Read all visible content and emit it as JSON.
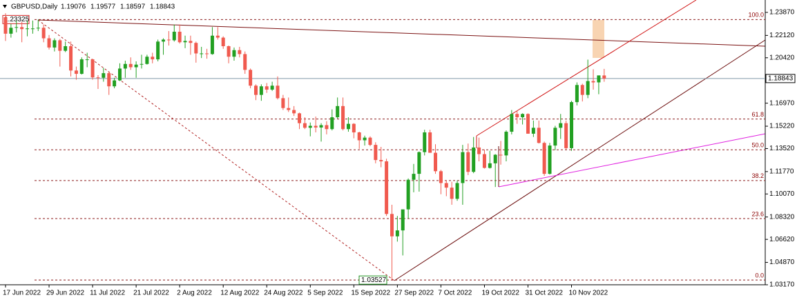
{
  "chart_data": {
    "type": "candlestick",
    "symbol": "GBPUSD,Daily",
    "categories": [
      "17 Jun 2022",
      null,
      null,
      null,
      null,
      null,
      null,
      null,
      "29 Jun 2022",
      null,
      null,
      null,
      null,
      null,
      null,
      null,
      "11 Jul 2022",
      null,
      null,
      null,
      null,
      null,
      null,
      null,
      "21 Jul 2022",
      null,
      null,
      null,
      null,
      null,
      null,
      null,
      "2 Aug 2022",
      null,
      null,
      null,
      null,
      null,
      null,
      null,
      "12 Aug 2022",
      null,
      null,
      null,
      null,
      null,
      null,
      null,
      "24 Aug 2022",
      null,
      null,
      null,
      null,
      null,
      null,
      null,
      "5 Sep 2022",
      null,
      null,
      null,
      null,
      null,
      null,
      null,
      "15 Sep 2022",
      null,
      null,
      null,
      null,
      null,
      null,
      null,
      "27 Sep 2022",
      null,
      null,
      null,
      null,
      null,
      null,
      null,
      "7 Oct 2022",
      null,
      null,
      null,
      null,
      null,
      null,
      null,
      "19 Oct 2022",
      null,
      null,
      null,
      null,
      null,
      null,
      null,
      "31 Oct 2022",
      null,
      null,
      null,
      null,
      null,
      null,
      null,
      "10 Nov 2022",
      null,
      null,
      null,
      null,
      null,
      null
    ],
    "up_color": "#22a022",
    "down_color": "#f05a4f",
    "series": [
      {
        "open": [
          1.235,
          1.2225,
          1.227,
          1.2275,
          1.226,
          1.2265,
          1.2265,
          1.227,
          1.219,
          1.212,
          1.2175,
          1.2095,
          1.213,
          1.1945,
          1.192,
          1.203,
          1.203,
          1.1893,
          1.189,
          1.1925,
          1.1825,
          1.187,
          1.196,
          1.1995,
          1.197,
          1.199,
          1.1995,
          1.205,
          1.203,
          1.2165,
          1.218,
          1.2175,
          1.224,
          1.216,
          1.217,
          1.2155,
          1.2075,
          1.2075,
          1.207,
          1.221,
          1.2195,
          1.213,
          1.205,
          1.21,
          1.207,
          1.195,
          1.183,
          1.176,
          1.1825,
          1.18,
          1.183,
          1.1735,
          1.166,
          1.1645,
          1.162,
          1.1545,
          1.151,
          1.1525,
          1.1512,
          1.153,
          1.15,
          1.159,
          1.1675,
          1.15,
          1.154,
          1.1475,
          1.1415,
          1.1435,
          1.138,
          1.1265,
          1.1255,
          1.0855,
          1.0685,
          1.073,
          1.089,
          1.1115,
          1.116,
          1.1325,
          1.1475,
          1.132,
          1.118,
          1.109,
          1.1055,
          1.097,
          1.109,
          1.1325,
          1.1175,
          1.136,
          1.131,
          1.1205,
          1.124,
          1.1305,
          1.13,
          1.148,
          1.1615,
          1.159,
          1.1615,
          1.1465,
          1.151,
          1.1395,
          1.116,
          1.1375,
          1.151,
          1.1545,
          1.1355,
          1.1705,
          1.1835,
          1.176,
          1.1865,
          1.1855,
          1.19076
        ],
        "high": [
          1.238,
          1.23,
          1.2325,
          1.2315,
          1.2325,
          1.2325,
          1.23325,
          1.2295,
          1.2215,
          1.219,
          1.2185,
          1.2165,
          1.2165,
          1.1975,
          1.2045,
          1.208,
          1.2035,
          1.191,
          1.1965,
          1.1935,
          1.189,
          1.2,
          1.202,
          1.2045,
          1.2015,
          1.2065,
          1.2065,
          1.208,
          1.218,
          1.219,
          1.2245,
          1.2295,
          1.2295,
          1.221,
          1.221,
          1.2165,
          1.2125,
          1.211,
          1.2275,
          1.2275,
          1.2205,
          1.2135,
          1.212,
          1.2125,
          1.209,
          1.196,
          1.184,
          1.184,
          1.185,
          1.186,
          1.19,
          1.176,
          1.174,
          1.1675,
          1.1625,
          1.159,
          1.155,
          1.1595,
          1.1545,
          1.156,
          1.165,
          1.174,
          1.174,
          1.159,
          1.1545,
          1.148,
          1.145,
          1.1445,
          1.14,
          1.1365,
          1.1275,
          1.0925,
          1.084,
          1.088,
          1.1125,
          1.1235,
          1.133,
          1.1495,
          1.1495,
          1.1385,
          1.119,
          1.111,
          1.11,
          1.111,
          1.138,
          1.139,
          1.144,
          1.1435,
          1.1345,
          1.1335,
          1.131,
          1.141,
          1.149,
          1.1645,
          1.164,
          1.162,
          1.162,
          1.1565,
          1.1565,
          1.1405,
          1.1395,
          1.1525,
          1.1615,
          1.1565,
          1.1715,
          1.1855,
          1.1845,
          1.2028,
          1.1955,
          1.1905,
          1.19577
        ],
        "low": [
          1.217,
          1.2195,
          1.2235,
          1.216,
          1.2205,
          1.2225,
          1.2245,
          1.216,
          1.2105,
          1.209,
          1.1975,
          1.2085,
          1.19,
          1.1875,
          1.1915,
          1.197,
          1.1875,
          1.1805,
          1.186,
          1.176,
          1.181,
          1.1865,
          1.189,
          1.195,
          1.189,
          1.196,
          1.199,
          1.2,
          1.2015,
          1.2065,
          1.2135,
          1.2165,
          1.215,
          1.2115,
          1.2065,
          1.2005,
          1.204,
          1.2035,
          1.2065,
          1.218,
          1.211,
          1.2,
          1.202,
          1.2045,
          1.192,
          1.181,
          1.172,
          1.1715,
          1.1775,
          1.179,
          1.1725,
          1.1645,
          1.163,
          1.16,
          1.15,
          1.15,
          1.1445,
          1.1475,
          1.1405,
          1.146,
          1.149,
          1.158,
          1.149,
          1.148,
          1.143,
          1.135,
          1.1375,
          1.137,
          1.124,
          1.121,
          1.084,
          1.03527,
          1.0645,
          1.054,
          1.082,
          1.102,
          1.1025,
          1.13,
          1.132,
          1.116,
          1.1005,
          1.099,
          1.0925,
          1.0955,
          1.0925,
          1.115,
          1.1165,
          1.1255,
          1.12,
          1.12,
          1.106,
          1.123,
          1.1255,
          1.146,
          1.154,
          1.1535,
          1.1465,
          1.144,
          1.139,
          1.1145,
          1.1155,
          1.134,
          1.1425,
          1.1345,
          1.1335,
          1.168,
          1.171,
          1.1735,
          1.18,
          1.1765,
          1.18597
        ],
        "close": [
          1.2225,
          1.227,
          1.2275,
          1.226,
          1.2265,
          1.2265,
          1.227,
          1.219,
          1.212,
          1.2175,
          1.2095,
          1.213,
          1.1945,
          1.192,
          1.203,
          1.203,
          1.1893,
          1.189,
          1.1925,
          1.1825,
          1.187,
          1.196,
          1.1995,
          1.197,
          1.199,
          1.1995,
          1.205,
          1.203,
          1.2165,
          1.218,
          1.2175,
          1.224,
          1.216,
          1.217,
          1.2155,
          1.2075,
          1.2075,
          1.207,
          1.221,
          1.2195,
          1.213,
          1.205,
          1.21,
          1.207,
          1.195,
          1.183,
          1.176,
          1.1825,
          1.18,
          1.183,
          1.1735,
          1.166,
          1.1645,
          1.162,
          1.1545,
          1.151,
          1.1525,
          1.1512,
          1.153,
          1.15,
          1.159,
          1.1675,
          1.15,
          1.154,
          1.1475,
          1.1415,
          1.1435,
          1.138,
          1.1265,
          1.1255,
          1.0855,
          1.0685,
          1.073,
          1.089,
          1.1115,
          1.116,
          1.1325,
          1.1475,
          1.132,
          1.118,
          1.109,
          1.1055,
          1.097,
          1.109,
          1.1325,
          1.1175,
          1.136,
          1.131,
          1.1205,
          1.124,
          1.1305,
          1.13,
          1.148,
          1.1615,
          1.159,
          1.1615,
          1.1465,
          1.151,
          1.1395,
          1.116,
          1.1375,
          1.151,
          1.1545,
          1.1355,
          1.1705,
          1.1835,
          1.176,
          1.1865,
          1.1855,
          1.1908,
          1.18843
        ]
      }
    ],
    "ylim": [
      1.0317,
      1.2481
    ],
    "yticks": [
      {
        "value": 1.2387,
        "label": "1.23870"
      },
      {
        "value": 1.2212,
        "label": "1.22120"
      },
      {
        "value": 1.2042,
        "label": "1.20420"
      },
      {
        "value": 1.1867,
        "label": "1.18670"
      },
      {
        "value": 1.1697,
        "label": "1.16970"
      },
      {
        "value": 1.1522,
        "label": "1.15220"
      },
      {
        "value": 1.1352,
        "label": "1.13520"
      },
      {
        "value": 1.1177,
        "label": "1.11770"
      },
      {
        "value": 1.1007,
        "label": "1.10070"
      },
      {
        "value": 1.0832,
        "label": "1.08320"
      },
      {
        "value": 1.0662,
        "label": "1.06620"
      },
      {
        "value": 1.0487,
        "label": "1.04870"
      },
      {
        "value": 1.0317,
        "label": "1.03170"
      }
    ],
    "current_price": 1.18843,
    "high_marker": 1.23325,
    "low_marker": 1.03527,
    "fib_levels": [
      {
        "label": "100.0",
        "price": 1.23325
      },
      {
        "label": "61.8",
        "price": 1.15762
      },
      {
        "label": "50.0",
        "price": 1.13426
      },
      {
        "label": "38.2",
        "price": 1.1109
      },
      {
        "label": "23.6",
        "price": 1.08199
      },
      {
        "label": "0.0",
        "price": 1.03527
      }
    ]
  }
}
